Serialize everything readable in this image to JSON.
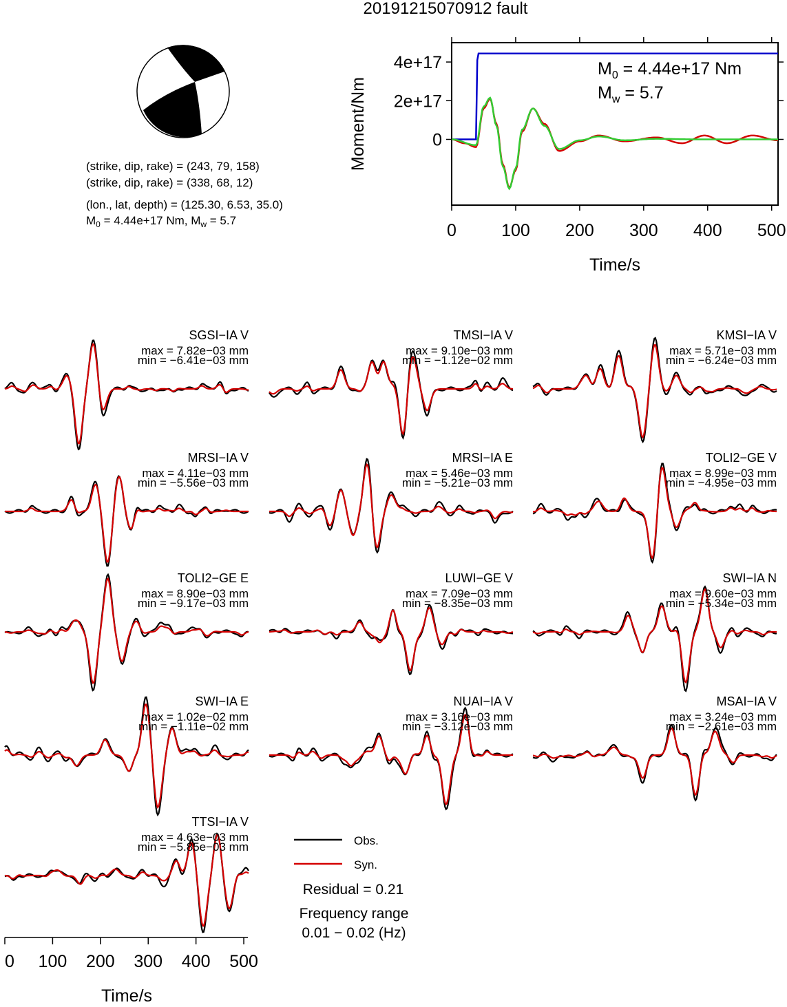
{
  "title": "20191215070912 fault",
  "mechanism": {
    "plane1": "(strike, dip, rake) = (243, 79, 158)",
    "plane2": "(strike, dip, rake) = (338, 68, 12)",
    "location": "(lon., lat, depth) = (125.30, 6.53, 35.0)",
    "m0_prefix": "M",
    "m0_sub": "0",
    "m0_rest": " = 4.44e+17 Nm, M",
    "mw_sub": "w",
    "mw_rest": " = 5.7"
  },
  "moment_panel": {
    "ylabel": "Moment/Nm",
    "xlabel": "Time/s",
    "yticks": [
      "0",
      "2e+17",
      "4e+17"
    ],
    "xticks": [
      "0",
      "100",
      "200",
      "300",
      "400",
      "500"
    ],
    "annot_m0_prefix": "M",
    "annot_m0_sub": "0",
    "annot_m0_rest": " = 4.44e+17 Nm",
    "annot_mw_prefix": "M",
    "annot_mw_sub": "w",
    "annot_mw_rest": " = 5.7"
  },
  "colors": {
    "observed": "#000000",
    "synthetic": "#d40000",
    "cumulative_moment": "#0000cc",
    "moment_rate_fit": "#33cc33",
    "beachball": "#000000"
  },
  "chart_data": [
    {
      "type": "line",
      "title": "",
      "xlabel": "Time/s",
      "ylabel": "Moment/Nm",
      "xlim": [
        0,
        510
      ],
      "ylim": [
        -3.4e+17,
        5e+17
      ],
      "series": [
        {
          "name": "",
          "x": [
            0,
            38,
            40,
            42,
            510
          ],
          "values": [
            0,
            0,
            4.1e+17,
            4.44e+17,
            4.44e+17
          ]
        },
        {
          "name": "",
          "x": [
            0,
            20,
            38,
            50,
            60,
            70,
            80,
            90,
            100,
            110,
            127,
            145,
            168,
            200,
            230,
            270,
            320,
            360,
            395,
            430,
            470,
            510
          ],
          "values": [
            0,
            -2e+16,
            -4e+16,
            1.6e+17,
            2.1e+17,
            8e+16,
            -1.3e+17,
            -2.5e+17,
            -1.6e+17,
            4e+16,
            1.6e+17,
            8e+16,
            -6e+16,
            -1e+16,
            2e+16,
            -1e+16,
            1e+16,
            -2e+16,
            2e+16,
            -2e+16,
            2e+16,
            -5000000000000000.0
          ]
        },
        {
          "name": "",
          "x": [
            0,
            38,
            50,
            60,
            70,
            80,
            90,
            100,
            110,
            127,
            145,
            168,
            200,
            230,
            270,
            320,
            380,
            510
          ],
          "values": [
            0,
            -3e+16,
            1.7e+17,
            2.15e+17,
            7e+16,
            -1.4e+17,
            -2.55e+17,
            -1.5e+17,
            5e+16,
            1.6e+17,
            7e+16,
            -5e+16,
            -5000000000000000.0,
            1.5e+16,
            -5000000000000000.0,
            3000000000000000.0,
            0,
            0
          ]
        }
      ]
    },
    {
      "type": "line",
      "title": "",
      "xlabel": "Time/s",
      "xticks": [
        "0",
        "100",
        "200",
        "300",
        "400",
        "500"
      ],
      "xlim": [
        0,
        510
      ],
      "legend": [
        "Obs.",
        "Syn."
      ],
      "residual": "Residual = 0.21",
      "frequency_range_label": "Frequency range",
      "frequency_range": "0.01 − 0.02 (Hz)",
      "stations": [
        {
          "name": "SGSI−IA V",
          "max": "max = 7.82e−03 mm",
          "min": "min = −6.41e−03 mm",
          "phases": [
            [
              130,
              0.25
            ],
            [
              155,
              -1.0
            ],
            [
              185,
              0.85
            ],
            [
              205,
              -0.3
            ]
          ]
        },
        {
          "name": "TMSI−IA V",
          "max": "max = 9.10e−03 mm",
          "min": "min = −1.12e−02 mm",
          "phases": [
            [
              150,
              0.35
            ],
            [
              215,
              0.5
            ],
            [
              240,
              0.55
            ],
            [
              280,
              -0.9
            ],
            [
              300,
              0.6
            ],
            [
              330,
              -0.35
            ]
          ]
        },
        {
          "name": "KMSI−IA V",
          "max": "max = 5.71e−03 mm",
          "min": "min = −6.24e−03 mm",
          "phases": [
            [
              110,
              0.3
            ],
            [
              140,
              0.35
            ],
            [
              180,
              0.6
            ],
            [
              230,
              -0.9
            ],
            [
              255,
              0.8
            ],
            [
              300,
              0.25
            ]
          ]
        },
        {
          "name": "MRSI−IA V",
          "max": "max = 4.11e−03 mm",
          "min": "min = −5.56e−03 mm",
          "phases": [
            [
              140,
              0.2
            ],
            [
              190,
              0.5
            ],
            [
              215,
              -0.95
            ],
            [
              240,
              0.7
            ],
            [
              265,
              -0.35
            ]
          ]
        },
        {
          "name": "MRSI−IA E",
          "max": "max = 5.46e−03 mm",
          "min": "min = −5.21e−03 mm",
          "phases": [
            [
              125,
              -0.2
            ],
            [
              150,
              0.4
            ],
            [
              175,
              -0.5
            ],
            [
              205,
              0.9
            ],
            [
              225,
              -0.7
            ],
            [
              255,
              0.3
            ]
          ]
        },
        {
          "name": "TOLI2−GE V",
          "max": "max = 8.99e−03 mm",
          "min": "min = −4.95e−03 mm",
          "phases": [
            [
              140,
              0.2
            ],
            [
              190,
              0.3
            ],
            [
              250,
              -0.9
            ],
            [
              270,
              0.85
            ],
            [
              300,
              -0.3
            ],
            [
              340,
              0.2
            ]
          ]
        },
        {
          "name": "TOLI2−GE E",
          "max": "max = 8.90e−03 mm",
          "min": "min = −9.17e−03 mm",
          "phases": [
            [
              150,
              0.25
            ],
            [
              185,
              -0.95
            ],
            [
              215,
              1.0
            ],
            [
              245,
              -0.55
            ],
            [
              275,
              0.2
            ]
          ]
        },
        {
          "name": "LUWI−GE V",
          "max": "max = 7.09e−03 mm",
          "min": "min = −8.35e−03 mm",
          "phases": [
            [
              190,
              0.2
            ],
            [
              230,
              -0.25
            ],
            [
              260,
              0.45
            ],
            [
              295,
              -0.75
            ],
            [
              335,
              0.45
            ],
            [
              360,
              -0.2
            ]
          ]
        },
        {
          "name": "SWI−IA N",
          "max": "max = 9.60e−03 mm",
          "min": "min = −5.34e−03 mm",
          "phases": [
            [
              200,
              0.25
            ],
            [
              230,
              -0.4
            ],
            [
              270,
              0.5
            ],
            [
              320,
              -0.9
            ],
            [
              360,
              0.8
            ],
            [
              395,
              -0.25
            ]
          ]
        },
        {
          "name": "SWI−IA E",
          "max": "max = 1.02e−02 mm",
          "min": "min = −1.11e−02 mm",
          "phases": [
            [
              150,
              -0.2
            ],
            [
              210,
              0.3
            ],
            [
              260,
              -0.3
            ],
            [
              295,
              0.95
            ],
            [
              320,
              -0.95
            ],
            [
              350,
              0.5
            ]
          ]
        },
        {
          "name": "NUAI−IA V",
          "max": "max = 3.16e−03 mm",
          "min": "min = −3.12e−03 mm",
          "phases": [
            [
              170,
              -0.15
            ],
            [
              230,
              0.3
            ],
            [
              285,
              -0.35
            ],
            [
              330,
              0.35
            ],
            [
              370,
              -0.9
            ],
            [
              410,
              0.7
            ]
          ]
        },
        {
          "name": "MSAI−IA V",
          "max": "max = 3.24e−03 mm",
          "min": "min = −2.61e−03 mm",
          "phases": [
            [
              170,
              0.15
            ],
            [
              230,
              -0.4
            ],
            [
              290,
              0.5
            ],
            [
              340,
              -0.75
            ],
            [
              380,
              0.4
            ],
            [
              420,
              -0.15
            ]
          ]
        },
        {
          "name": "TTSI−IA V",
          "max": "max = 4.63e−03 mm",
          "min": "min = −5.85e−03 mm",
          "phases": [
            [
              110,
              0.1
            ],
            [
              160,
              -0.2
            ],
            [
              230,
              0.15
            ],
            [
              360,
              0.3
            ],
            [
              390,
              0.65
            ],
            [
              415,
              -0.95
            ],
            [
              445,
              0.8
            ],
            [
              470,
              -0.6
            ]
          ]
        }
      ]
    }
  ]
}
